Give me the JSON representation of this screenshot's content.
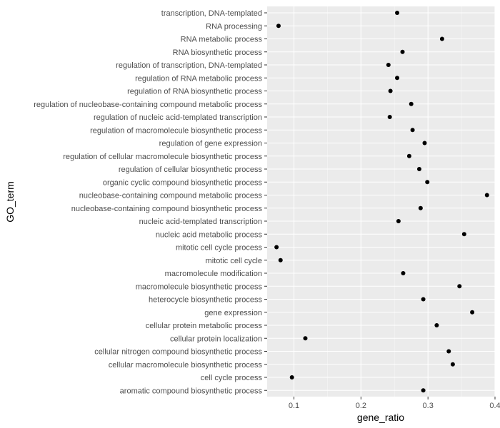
{
  "chart_data": {
    "type": "scatter",
    "title": "",
    "xlabel": "gene_ratio",
    "ylabel": "GO_term",
    "xlim": [
      0.06,
      0.4
    ],
    "xticks": [
      0.1,
      0.2,
      0.3,
      0.4
    ],
    "xtick_labels": [
      "0.1",
      "0.2",
      "0.3",
      "0.4"
    ],
    "grid": true,
    "colors": {
      "panel": "#ebebeb",
      "grid_major": "#ffffff",
      "point": "#000000"
    },
    "points": [
      {
        "term": "transcription, DNA-templated",
        "gene_ratio": 0.254
      },
      {
        "term": "RNA processing",
        "gene_ratio": 0.077
      },
      {
        "term": "RNA metabolic process",
        "gene_ratio": 0.321
      },
      {
        "term": "RNA biosynthetic process",
        "gene_ratio": 0.262
      },
      {
        "term": "regulation of transcription, DNA-templated",
        "gene_ratio": 0.241
      },
      {
        "term": "regulation of RNA metabolic process",
        "gene_ratio": 0.254
      },
      {
        "term": "regulation of RNA biosynthetic process",
        "gene_ratio": 0.244
      },
      {
        "term": "regulation of nucleobase-containing compound metabolic process",
        "gene_ratio": 0.275
      },
      {
        "term": "regulation of nucleic acid-templated transcription",
        "gene_ratio": 0.243
      },
      {
        "term": "regulation of macromolecule biosynthetic process",
        "gene_ratio": 0.277
      },
      {
        "term": "regulation of gene expression",
        "gene_ratio": 0.295
      },
      {
        "term": "regulation of cellular macromolecule biosynthetic process",
        "gene_ratio": 0.272
      },
      {
        "term": "regulation of cellular biosynthetic process",
        "gene_ratio": 0.287
      },
      {
        "term": "organic cyclic compound biosynthetic process",
        "gene_ratio": 0.299
      },
      {
        "term": "nucleobase-containing compound metabolic process",
        "gene_ratio": 0.388
      },
      {
        "term": "nucleobase-containing compound biosynthetic process",
        "gene_ratio": 0.289
      },
      {
        "term": "nucleic acid-templated transcription",
        "gene_ratio": 0.256
      },
      {
        "term": "nucleic acid metabolic process",
        "gene_ratio": 0.354
      },
      {
        "term": "mitotic cell cycle process",
        "gene_ratio": 0.074
      },
      {
        "term": "mitotic cell cycle",
        "gene_ratio": 0.08
      },
      {
        "term": "macromolecule modification",
        "gene_ratio": 0.263
      },
      {
        "term": "macromolecule biosynthetic process",
        "gene_ratio": 0.347
      },
      {
        "term": "heterocycle biosynthetic process",
        "gene_ratio": 0.293
      },
      {
        "term": "gene expression",
        "gene_ratio": 0.366
      },
      {
        "term": "cellular protein metabolic process",
        "gene_ratio": 0.313
      },
      {
        "term": "cellular protein localization",
        "gene_ratio": 0.117
      },
      {
        "term": "cellular nitrogen compound biosynthetic process",
        "gene_ratio": 0.331
      },
      {
        "term": "cellular macromolecule biosynthetic process",
        "gene_ratio": 0.337
      },
      {
        "term": "cell cycle process",
        "gene_ratio": 0.097
      },
      {
        "term": "aromatic compound biosynthetic process",
        "gene_ratio": 0.293
      }
    ]
  }
}
